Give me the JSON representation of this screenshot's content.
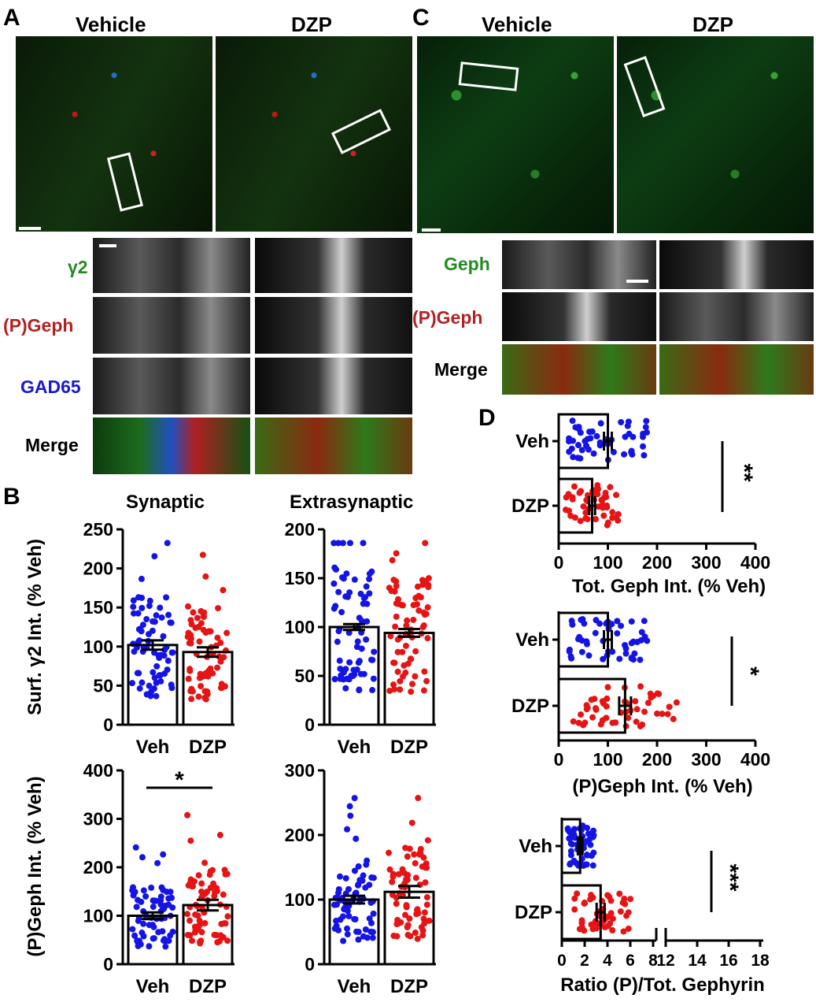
{
  "panels": {
    "A": {
      "letter": "A",
      "col1": "Vehicle",
      "col2": "DZP",
      "rows": [
        "γ2",
        "(P)Geph",
        "GAD65",
        "Merge"
      ]
    },
    "C": {
      "letter": "C",
      "col1": "Vehicle",
      "col2": "DZP",
      "rows": [
        "Geph",
        "(P)Geph",
        "Merge"
      ]
    },
    "B": {
      "letter": "B",
      "col1": "Synaptic",
      "col2": "Extrasynaptic"
    },
    "D": {
      "letter": "D"
    }
  },
  "colors": {
    "veh": "#1414e6",
    "dzp": "#e61414",
    "gamma2": "#228b22",
    "pgeph": "#b22222",
    "gad65": "#1a1acd"
  },
  "chart_data": [
    {
      "id": "B-syn-g2",
      "type": "bar",
      "categories": [
        "Veh",
        "DZP"
      ],
      "values": [
        102,
        93
      ],
      "sem": [
        6,
        6
      ],
      "ylabel": "Surf. γ2 Int. (% Veh)",
      "ylim": [
        0,
        250
      ],
      "yticks": [
        0,
        50,
        100,
        150,
        200,
        250
      ],
      "significance": ""
    },
    {
      "id": "B-ext-g2",
      "type": "bar",
      "categories": [
        "Veh",
        "DZP"
      ],
      "values": [
        100,
        94
      ],
      "sem": [
        3,
        4
      ],
      "ylabel": "",
      "ylim": [
        0,
        200
      ],
      "yticks": [
        0,
        50,
        100,
        150,
        200
      ],
      "significance": ""
    },
    {
      "id": "B-syn-pg",
      "type": "bar",
      "categories": [
        "Veh",
        "DZP"
      ],
      "values": [
        100,
        122
      ],
      "sem": [
        7,
        11
      ],
      "ylabel": "(P)Geph Int. (% Veh)",
      "ylim": [
        0,
        400
      ],
      "yticks": [
        0,
        100,
        200,
        300,
        400
      ],
      "significance": "*"
    },
    {
      "id": "B-ext-pg",
      "type": "bar",
      "categories": [
        "Veh",
        "DZP"
      ],
      "values": [
        100,
        112
      ],
      "sem": [
        6,
        9
      ],
      "ylabel": "",
      "ylim": [
        0,
        300
      ],
      "yticks": [
        0,
        100,
        200,
        300
      ],
      "significance": ""
    },
    {
      "id": "D-tot",
      "type": "bar",
      "orientation": "horizontal",
      "categories": [
        "Veh",
        "DZP"
      ],
      "values": [
        100,
        68
      ],
      "sem": [
        8,
        6
      ],
      "xlabel": "Tot. Geph Int. (% Veh)",
      "xlim": [
        0,
        400
      ],
      "xticks": [
        0,
        100,
        200,
        300,
        400
      ],
      "significance": "**"
    },
    {
      "id": "D-p",
      "type": "bar",
      "orientation": "horizontal",
      "categories": [
        "Veh",
        "DZP"
      ],
      "values": [
        100,
        135
      ],
      "sem": [
        8,
        12
      ],
      "xlabel": "(P)Geph Int. (% Veh)",
      "xlim": [
        0,
        400
      ],
      "xticks": [
        0,
        100,
        200,
        300,
        400
      ],
      "significance": "*"
    },
    {
      "id": "D-ratio",
      "type": "bar",
      "orientation": "horizontal",
      "categories": [
        "Veh",
        "DZP"
      ],
      "values": [
        1.6,
        3.4
      ],
      "sem": [
        0.2,
        0.35
      ],
      "xlabel": "Ratio (P)/Tot. Gephyrin",
      "xticks": [
        0,
        2,
        4,
        6,
        8,
        12,
        14,
        16,
        18
      ],
      "axis_break": [
        8,
        12
      ],
      "significance": "***"
    }
  ]
}
